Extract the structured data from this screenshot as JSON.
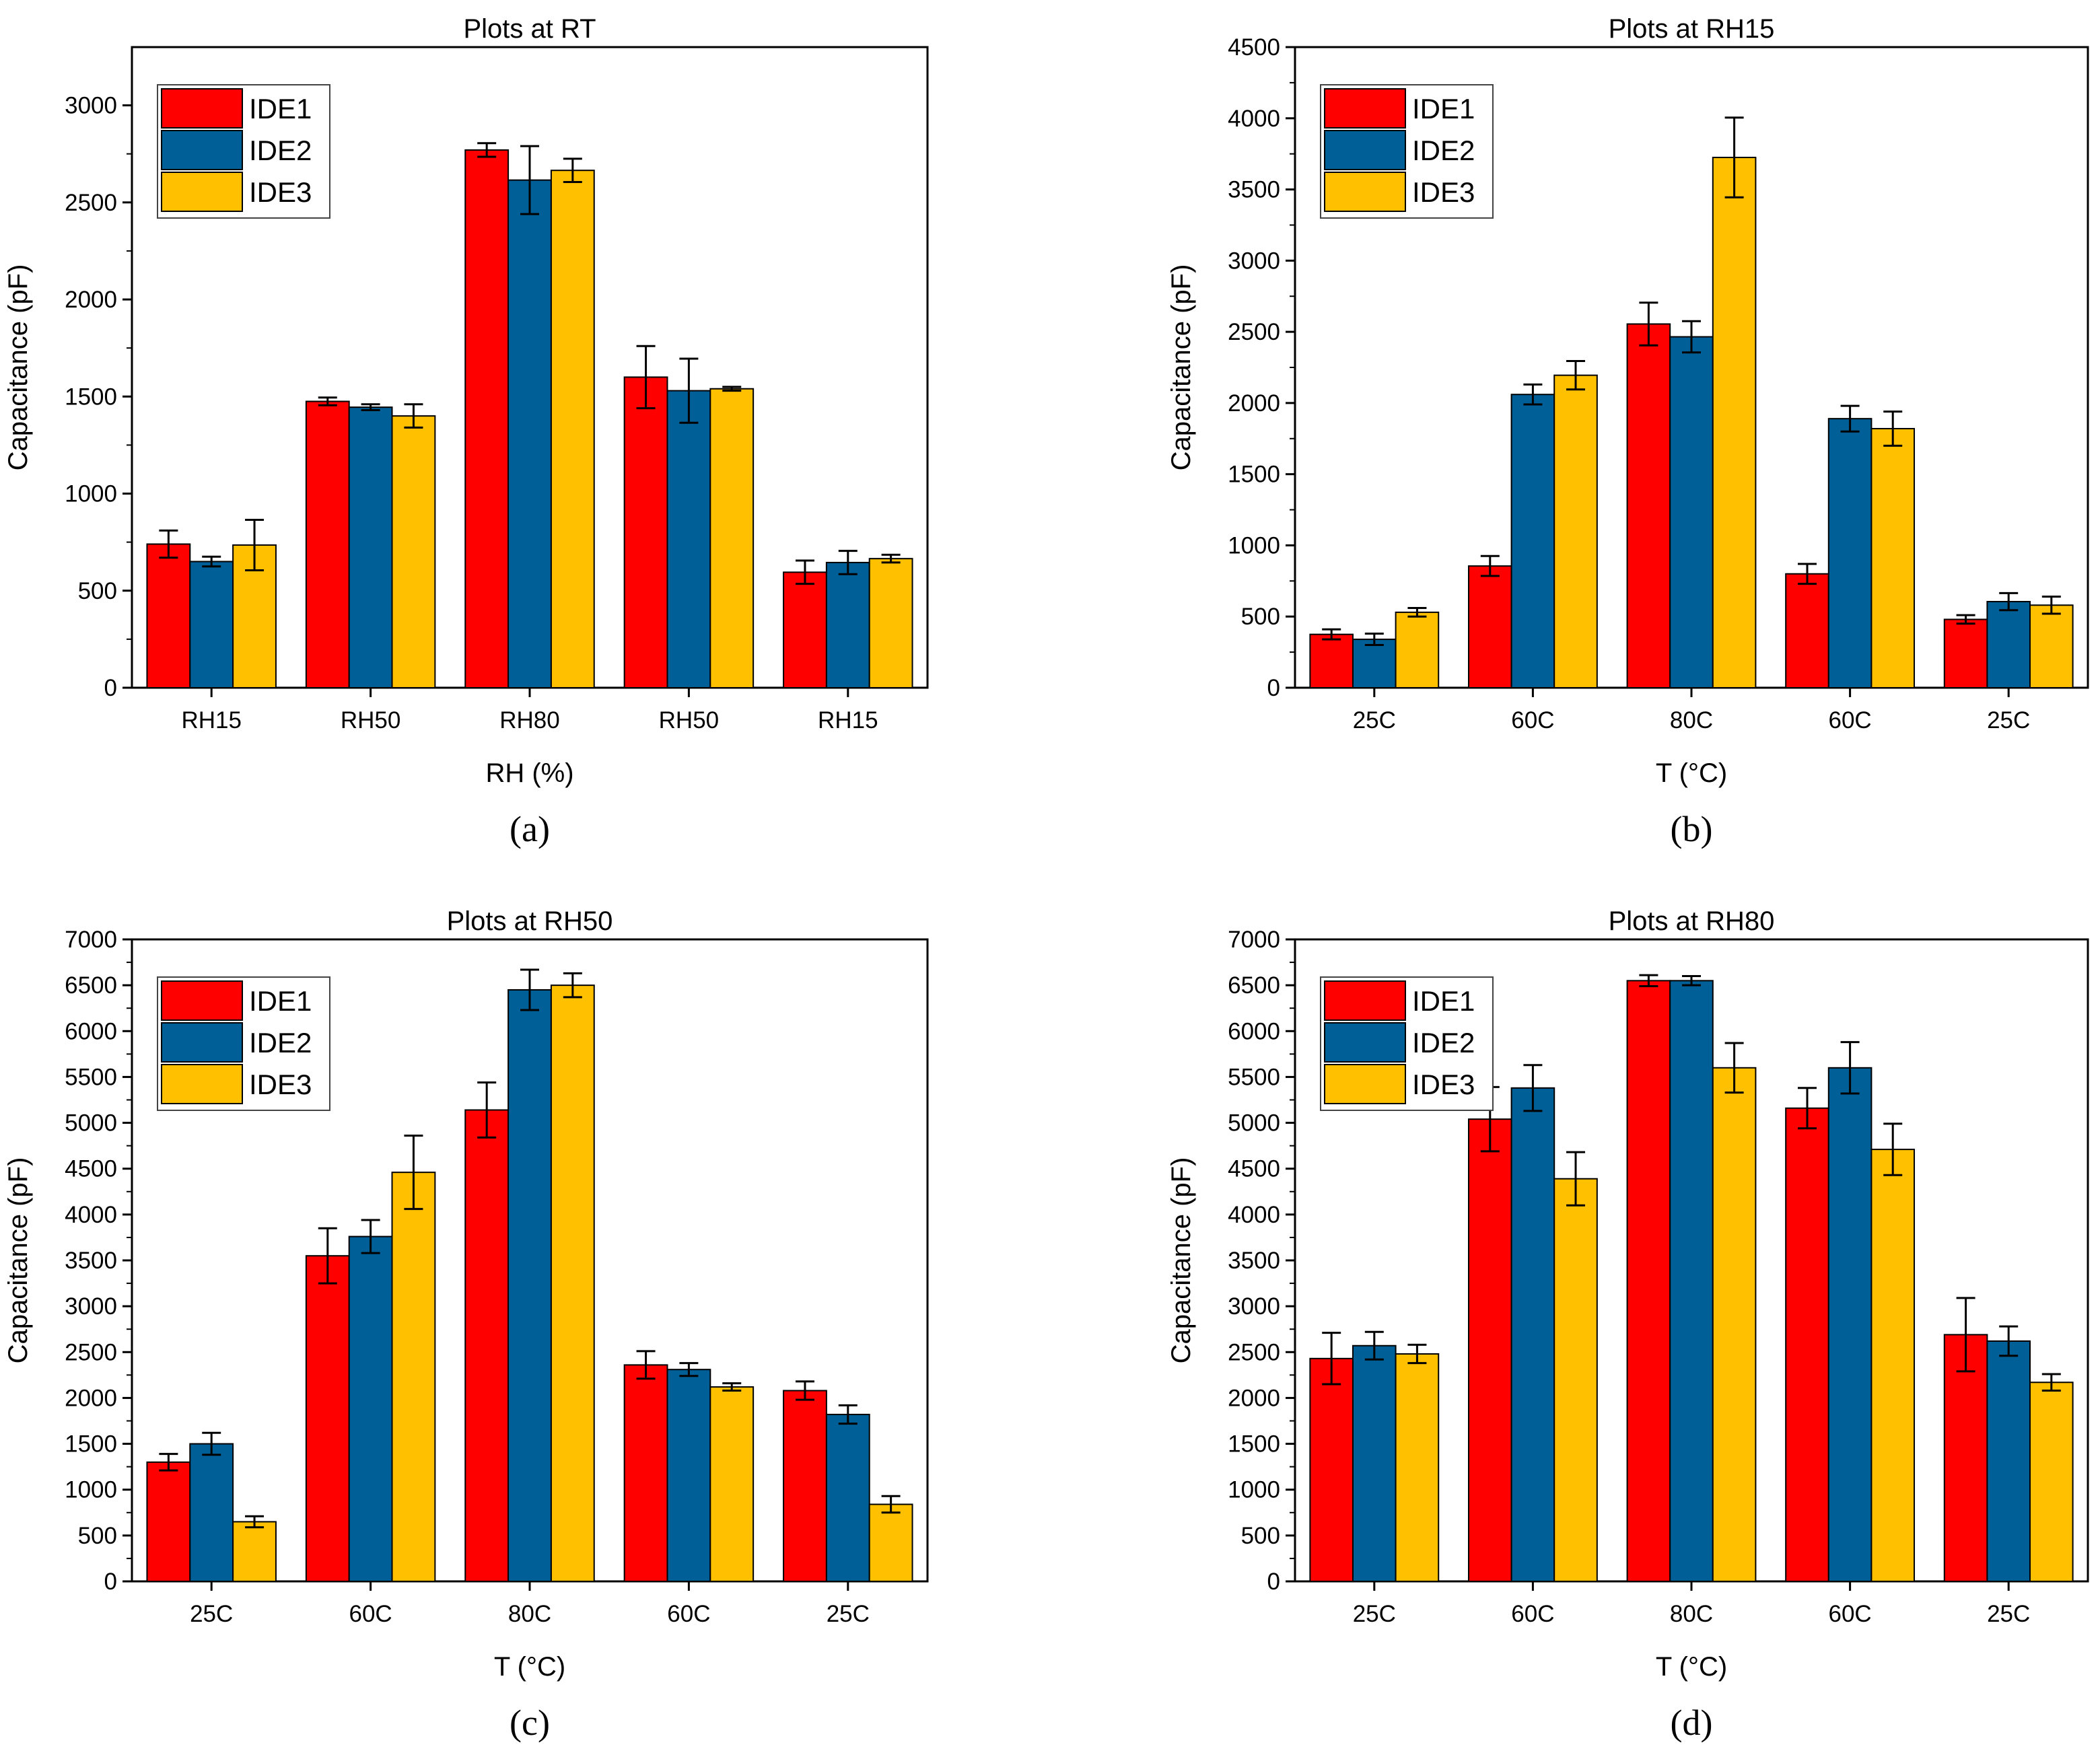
{
  "series_names": [
    "IDE1",
    "IDE2",
    "IDE3"
  ],
  "colors": {
    "IDE1": "#ff0000",
    "IDE2": "#005f96",
    "IDE3": "#ffc000"
  },
  "chart_data": [
    {
      "type": "bar",
      "panel": "(a)",
      "title": "Plots at RT",
      "xlabel": "RH (%)",
      "ylabel": "Capacitance (pF)",
      "categories": [
        "RH15",
        "RH50",
        "RH80",
        "RH50",
        "RH15"
      ],
      "ylim": [
        0,
        3300
      ],
      "yticks": [
        0,
        500,
        1000,
        1500,
        2000,
        2500,
        3000
      ],
      "legend_position": "top-left",
      "series": [
        {
          "name": "IDE1",
          "values": [
            740,
            1475,
            2770,
            1600,
            595
          ],
          "errors": [
            70,
            20,
            35,
            160,
            60
          ]
        },
        {
          "name": "IDE2",
          "values": [
            650,
            1445,
            2615,
            1530,
            645
          ],
          "errors": [
            25,
            15,
            175,
            165,
            60
          ]
        },
        {
          "name": "IDE3",
          "values": [
            735,
            1400,
            2665,
            1540,
            665
          ],
          "errors": [
            130,
            60,
            60,
            10,
            20
          ]
        }
      ]
    },
    {
      "type": "bar",
      "panel": "(b)",
      "title": "Plots at RH15",
      "xlabel": "T (°C)",
      "ylabel": "Capacitance (pF)",
      "categories": [
        "25C",
        "60C",
        "80C",
        "60C",
        "25C"
      ],
      "ylim": [
        0,
        4500
      ],
      "yticks": [
        0,
        500,
        1000,
        1500,
        2000,
        2500,
        3000,
        3500,
        4000,
        4500
      ],
      "legend_position": "top-left",
      "series": [
        {
          "name": "IDE1",
          "values": [
            375,
            855,
            2555,
            800,
            480
          ],
          "errors": [
            35,
            70,
            150,
            70,
            30
          ]
        },
        {
          "name": "IDE2",
          "values": [
            340,
            2060,
            2465,
            1890,
            605
          ],
          "errors": [
            40,
            70,
            110,
            90,
            60
          ]
        },
        {
          "name": "IDE3",
          "values": [
            530,
            2195,
            3725,
            1820,
            580
          ],
          "errors": [
            30,
            100,
            280,
            120,
            60
          ]
        }
      ]
    },
    {
      "type": "bar",
      "panel": "(c)",
      "title": "Plots at RH50",
      "xlabel": "T (°C)",
      "ylabel": "Capacitance (pF)",
      "categories": [
        "25C",
        "60C",
        "80C",
        "60C",
        "25C"
      ],
      "ylim": [
        0,
        7000
      ],
      "yticks": [
        0,
        500,
        1000,
        1500,
        2000,
        2500,
        3000,
        3500,
        4000,
        4500,
        5000,
        5500,
        6000,
        6500,
        7000
      ],
      "legend_position": "top-left",
      "series": [
        {
          "name": "IDE1",
          "values": [
            1300,
            3550,
            5140,
            2360,
            2080
          ],
          "errors": [
            90,
            300,
            300,
            150,
            100
          ]
        },
        {
          "name": "IDE2",
          "values": [
            1500,
            3760,
            6450,
            2310,
            1820
          ],
          "errors": [
            120,
            180,
            220,
            70,
            100
          ]
        },
        {
          "name": "IDE3",
          "values": [
            650,
            4460,
            6500,
            2120,
            840
          ],
          "errors": [
            60,
            400,
            130,
            40,
            90
          ]
        }
      ]
    },
    {
      "type": "bar",
      "panel": "(d)",
      "title": "Plots at RH80",
      "xlabel": "T (°C)",
      "ylabel": "Capacitance (pF)",
      "categories": [
        "25C",
        "60C",
        "80C",
        "60C",
        "25C"
      ],
      "ylim": [
        0,
        7000
      ],
      "yticks": [
        0,
        500,
        1000,
        1500,
        2000,
        2500,
        3000,
        3500,
        4000,
        4500,
        5000,
        5500,
        6000,
        6500,
        7000
      ],
      "legend_position": "top-left",
      "series": [
        {
          "name": "IDE1",
          "values": [
            2430,
            5040,
            6550,
            5160,
            2690
          ],
          "errors": [
            280,
            350,
            60,
            220,
            400
          ]
        },
        {
          "name": "IDE2",
          "values": [
            2570,
            5380,
            6550,
            5600,
            2620
          ],
          "errors": [
            150,
            250,
            50,
            280,
            160
          ]
        },
        {
          "name": "IDE3",
          "values": [
            2480,
            4390,
            5600,
            4710,
            2170
          ],
          "errors": [
            100,
            290,
            270,
            280,
            90
          ]
        }
      ]
    }
  ]
}
